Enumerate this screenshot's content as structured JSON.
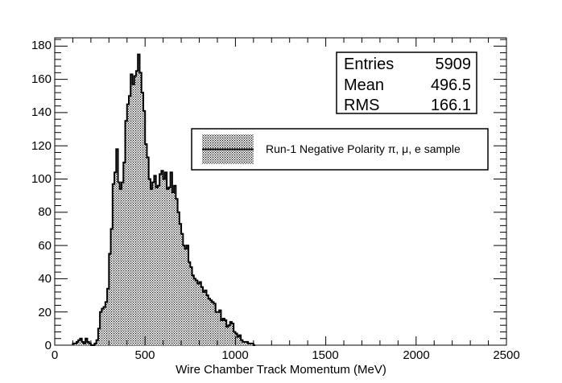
{
  "chart_data": {
    "type": "histogram",
    "xlabel": "Wire Chamber Track Momentum (MeV)",
    "ylabel": "",
    "xlim": [
      0,
      2500
    ],
    "ylim": [
      0,
      185
    ],
    "x_ticks": [
      "0",
      "500",
      "1000",
      "1500",
      "2000",
      "2500"
    ],
    "y_ticks": [
      "0",
      "20",
      "40",
      "60",
      "80",
      "100",
      "120",
      "140",
      "160",
      "180"
    ],
    "bin_width": 10,
    "bin_start": 100,
    "values": [
      1,
      1,
      2,
      3,
      4,
      2,
      1,
      4,
      2,
      1,
      0,
      0,
      1,
      3,
      10,
      20,
      22,
      23,
      26,
      34,
      55,
      70,
      97,
      104,
      118,
      98,
      94,
      98,
      110,
      135,
      145,
      150,
      163,
      157,
      162,
      165,
      175,
      164,
      152,
      141,
      121,
      113,
      100,
      94,
      98,
      102,
      95,
      96,
      103,
      105,
      100,
      104,
      94,
      95,
      104,
      92,
      96,
      88,
      80,
      73,
      67,
      60,
      58,
      60,
      50,
      47,
      42,
      40,
      39,
      37,
      38,
      35,
      32,
      33,
      30,
      28,
      27,
      26,
      25,
      20,
      20,
      21,
      15,
      16,
      15,
      11,
      12,
      14,
      13,
      8,
      7,
      5,
      6,
      3,
      2,
      2,
      2,
      1,
      1,
      1,
      0
    ],
    "legend": [
      {
        "label": "Run-1 Negative Polarity π, μ, e sample"
      }
    ],
    "stats": [
      {
        "name": "Entries",
        "value": "5909"
      },
      {
        "name": "Mean",
        "value": "496.5"
      },
      {
        "name": "RMS",
        "value": "166.1"
      }
    ]
  }
}
